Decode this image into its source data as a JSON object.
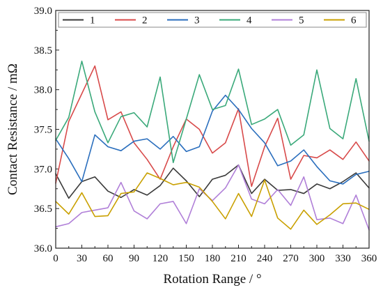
{
  "chart_data": {
    "type": "line",
    "xlabel": "Rotation Range / °",
    "ylabel": "Contact Resistance / mΩ",
    "xlim": [
      0,
      360
    ],
    "ylim": [
      36.0,
      39.0
    ],
    "x_ticks": [
      0,
      30,
      60,
      90,
      120,
      150,
      180,
      210,
      240,
      270,
      300,
      330,
      360
    ],
    "y_ticks": [
      "36.0",
      "36.5",
      "37.0",
      "37.5",
      "38.0",
      "38.5",
      "39.0"
    ],
    "grid": false,
    "legend_position": "top",
    "x": [
      0,
      15,
      30,
      45,
      60,
      75,
      90,
      105,
      120,
      135,
      150,
      165,
      180,
      195,
      210,
      225,
      240,
      255,
      270,
      285,
      300,
      315,
      330,
      345,
      360
    ],
    "series": [
      {
        "name": "1",
        "color": "#3a3a3a",
        "values": [
          36.94,
          36.63,
          36.84,
          36.9,
          36.72,
          36.64,
          36.74,
          36.67,
          36.79,
          37.01,
          36.85,
          36.65,
          36.87,
          36.92,
          37.05,
          36.69,
          36.87,
          36.73,
          36.74,
          36.69,
          36.81,
          36.75,
          36.84,
          36.95,
          36.76
        ]
      },
      {
        "name": "2",
        "color": "#d84a4a",
        "values": [
          36.82,
          37.6,
          37.95,
          38.3,
          37.62,
          37.72,
          37.33,
          37.12,
          36.87,
          37.28,
          37.63,
          37.5,
          37.2,
          37.33,
          37.76,
          36.78,
          37.28,
          37.64,
          36.87,
          37.17,
          37.14,
          37.24,
          37.12,
          37.34,
          37.1
        ]
      },
      {
        "name": "3",
        "color": "#2a6ebd",
        "values": [
          37.38,
          37.13,
          36.84,
          37.43,
          37.28,
          37.23,
          37.35,
          37.38,
          37.25,
          37.41,
          37.22,
          37.28,
          37.73,
          37.93,
          37.75,
          37.51,
          37.33,
          37.04,
          37.1,
          37.24,
          37.03,
          36.85,
          36.81,
          36.93,
          36.97
        ]
      },
      {
        "name": "4",
        "color": "#3aa97a",
        "values": [
          37.36,
          37.65,
          38.36,
          37.72,
          37.33,
          37.66,
          37.71,
          37.53,
          38.16,
          37.08,
          37.63,
          38.19,
          37.75,
          37.8,
          38.26,
          37.56,
          37.63,
          37.75,
          37.3,
          37.43,
          38.25,
          37.51,
          37.38,
          38.14,
          37.35
        ]
      },
      {
        "name": "5",
        "color": "#b07fd8",
        "values": [
          36.27,
          36.31,
          36.45,
          36.48,
          36.51,
          36.83,
          36.47,
          36.37,
          36.56,
          36.59,
          36.31,
          36.75,
          36.6,
          36.76,
          37.05,
          36.62,
          36.56,
          36.74,
          36.54,
          36.9,
          36.36,
          36.38,
          36.31,
          36.67,
          36.23
        ]
      },
      {
        "name": "6",
        "color": "#c9a000",
        "values": [
          36.59,
          36.43,
          36.7,
          36.4,
          36.41,
          36.69,
          36.71,
          36.95,
          36.88,
          36.8,
          36.83,
          36.77,
          36.59,
          36.37,
          36.69,
          36.4,
          36.86,
          36.38,
          36.24,
          36.48,
          36.3,
          36.42,
          36.56,
          36.57,
          36.49
        ]
      }
    ]
  }
}
